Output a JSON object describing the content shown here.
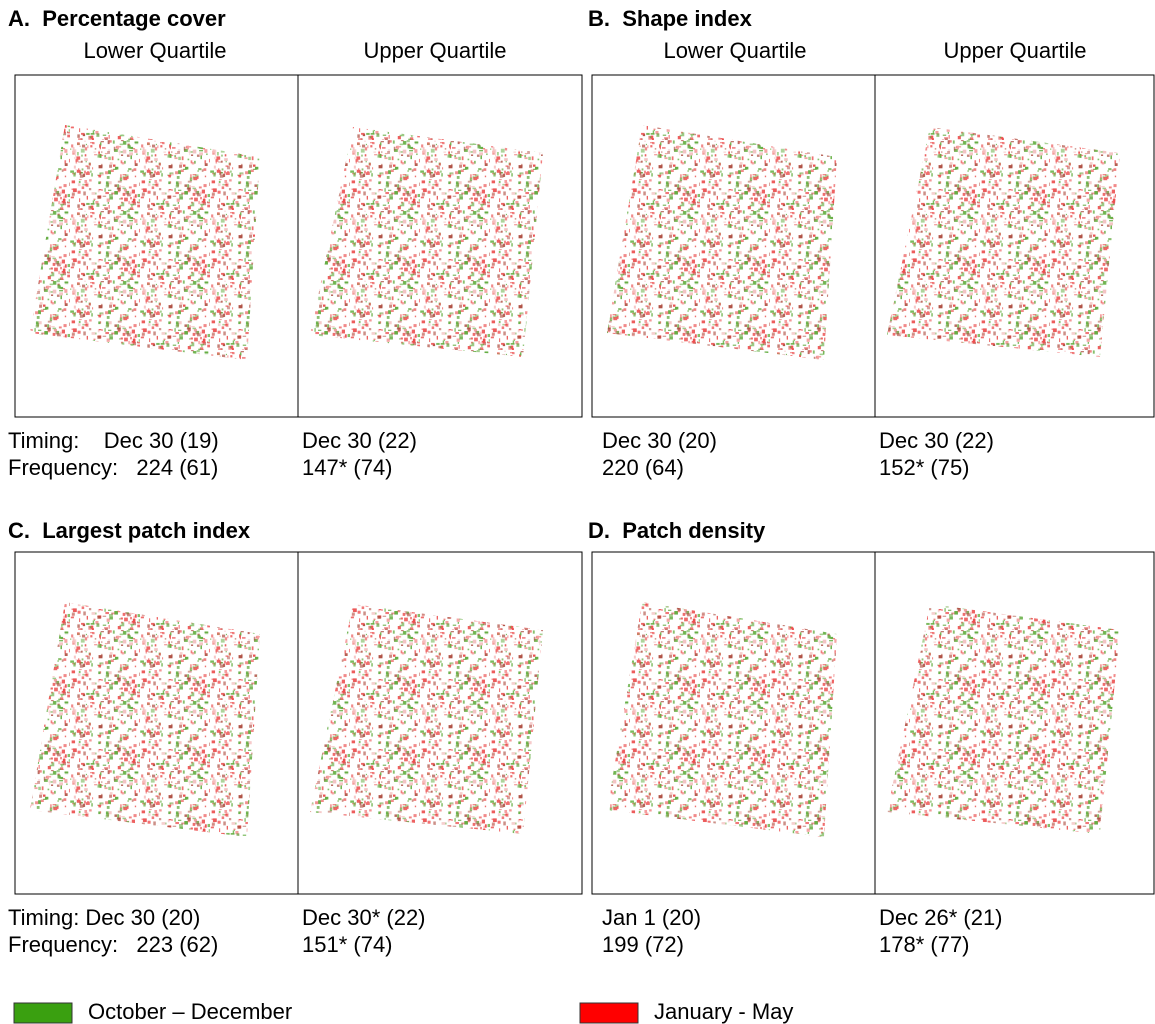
{
  "panels": [
    {
      "title": "A.  Percentage cover",
      "columns": [
        "Lower Quartile",
        "Upper Quartile"
      ],
      "lower": [
        "Timing:    Dec 30 (19)",
        "Frequency:   224 (61)"
      ],
      "upper": [
        "Dec 30 (22)",
        "147* (74)"
      ]
    },
    {
      "title": "B.  Shape index",
      "columns": [
        "Lower Quartile",
        "Upper Quartile"
      ],
      "lower": [
        "Dec 30 (20)",
        "220 (64)"
      ],
      "upper": [
        "Dec 30 (22)",
        "152* (75)"
      ]
    },
    {
      "title": "C.  Largest patch index",
      "lower": [
        "Timing: Dec 30 (20)",
        "Frequency:   223 (62)"
      ],
      "upper": [
        "Dec 30* (22)",
        "151* (74)"
      ]
    },
    {
      "title": "D.  Patch density",
      "lower": [
        "Jan 1 (20)",
        "199 (72)"
      ],
      "upper": [
        "Dec 26* (21)",
        "178* (77)"
      ]
    }
  ],
  "legend": [
    {
      "label": "October – December",
      "color": "#3aa010"
    },
    {
      "label": "January - May",
      "color": "#ff0000"
    }
  ]
}
